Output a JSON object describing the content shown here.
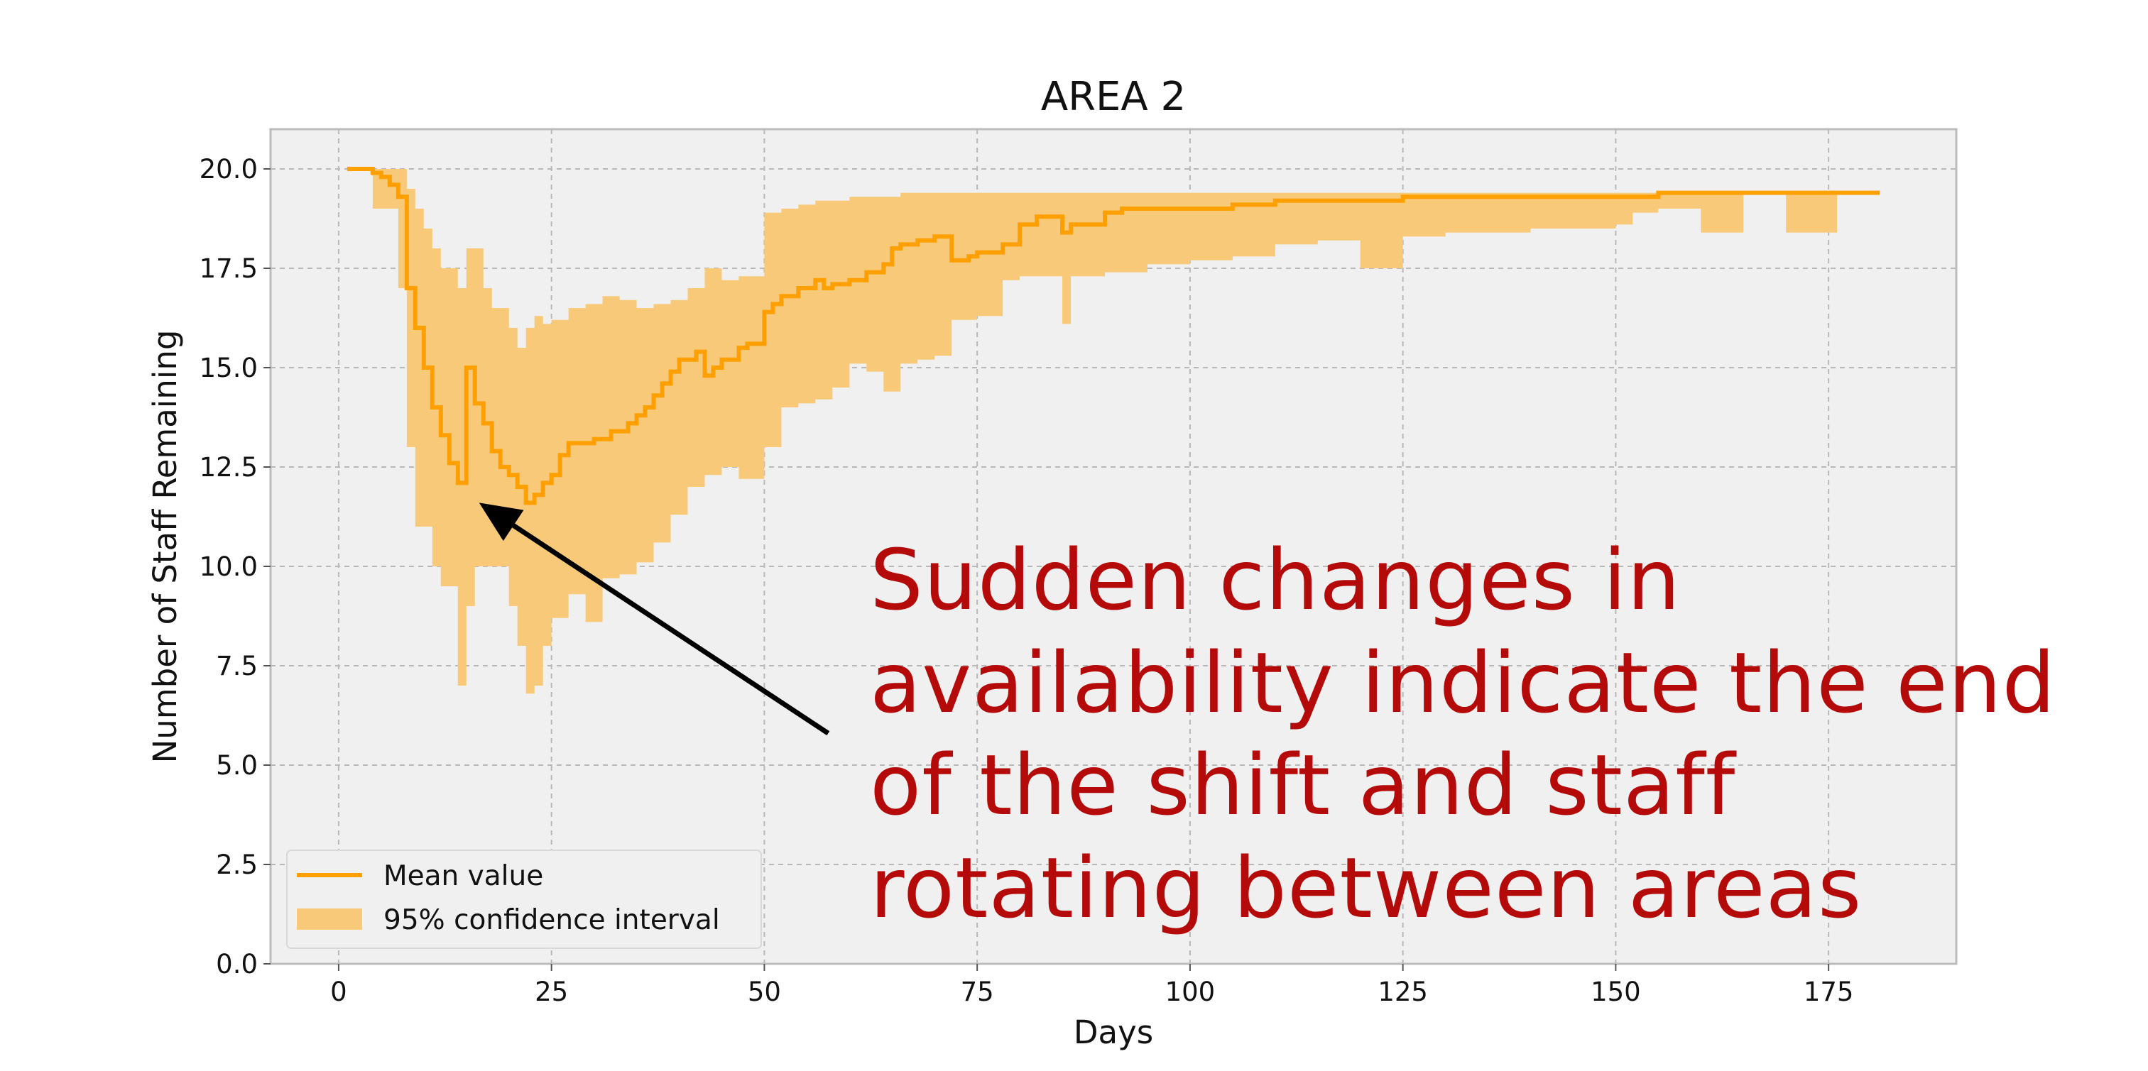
{
  "chart_data": {
    "type": "line",
    "title": "AREA 2",
    "xlabel": "Days",
    "ylabel": "Number of Staff Remaining",
    "xlim": [
      -8,
      190
    ],
    "ylim": [
      0,
      21
    ],
    "xticks": [
      0,
      25,
      50,
      75,
      100,
      125,
      150,
      175
    ],
    "yticks": [
      0.0,
      2.5,
      5.0,
      7.5,
      10.0,
      12.5,
      15.0,
      17.5,
      20.0
    ],
    "xtick_labels": [
      "0",
      "25",
      "50",
      "75",
      "100",
      "125",
      "150",
      "175"
    ],
    "ytick_labels": [
      "0.0",
      "2.5",
      "5.0",
      "7.5",
      "10.0",
      "12.5",
      "15.0",
      "17.5",
      "20.0"
    ],
    "grid": true,
    "legend_position": "lower-left",
    "colors": {
      "mean": "#ffa000",
      "ci": "#f7c978",
      "background": "#f0f0f0",
      "annotation": "#b50a0a",
      "arrow": "#000000"
    },
    "series": [
      {
        "name": "Mean value",
        "kind": "step-line",
        "x": [
          1,
          4,
          5,
          6,
          7,
          8,
          9,
          10,
          11,
          12,
          13,
          14,
          15,
          16,
          17,
          18,
          19,
          20,
          21,
          22,
          23,
          24,
          25,
          26,
          27,
          28,
          29,
          30,
          32,
          34,
          35,
          36,
          37,
          38,
          39,
          40,
          42,
          43,
          44,
          45,
          47,
          48,
          50,
          51,
          52,
          54,
          56,
          57,
          58,
          60,
          62,
          64,
          65,
          66,
          68,
          70,
          72,
          74,
          75,
          78,
          80,
          82,
          85,
          86,
          90,
          92,
          95,
          100,
          105,
          110,
          115,
          120,
          125,
          130,
          140,
          150,
          155,
          160,
          165,
          170,
          175,
          181
        ],
        "y": [
          20.0,
          19.9,
          19.8,
          19.6,
          19.3,
          17.0,
          16.0,
          15.0,
          14.0,
          13.3,
          12.6,
          12.1,
          15.0,
          14.1,
          13.6,
          12.9,
          12.5,
          12.3,
          12.0,
          11.6,
          11.8,
          12.1,
          12.3,
          12.8,
          13.1,
          13.1,
          13.1,
          13.2,
          13.4,
          13.6,
          13.8,
          14.0,
          14.3,
          14.6,
          14.9,
          15.2,
          15.4,
          14.8,
          15.0,
          15.2,
          15.5,
          15.6,
          16.4,
          16.6,
          16.8,
          17.0,
          17.2,
          17.0,
          17.1,
          17.2,
          17.4,
          17.6,
          18.0,
          18.1,
          18.2,
          18.3,
          17.7,
          17.8,
          17.9,
          18.1,
          18.6,
          18.8,
          18.4,
          18.6,
          18.9,
          19.0,
          19.0,
          19.0,
          19.1,
          19.2,
          19.2,
          19.2,
          19.3,
          19.3,
          19.3,
          19.3,
          19.4,
          19.4,
          19.4,
          19.4,
          19.4,
          19.4
        ]
      },
      {
        "name": "95% confidence interval",
        "kind": "step-band",
        "x": [
          1,
          4,
          7,
          8,
          9,
          10,
          11,
          12,
          14,
          15,
          16,
          17,
          18,
          20,
          21,
          22,
          23,
          24,
          25,
          27,
          29,
          31,
          33,
          35,
          37,
          39,
          41,
          43,
          45,
          47,
          50,
          52,
          54,
          56,
          58,
          60,
          62,
          64,
          66,
          68,
          70,
          72,
          75,
          78,
          80,
          85,
          86,
          90,
          95,
          100,
          105,
          110,
          115,
          120,
          125,
          130,
          140,
          150,
          152,
          155,
          160,
          165,
          170,
          176
        ],
        "lower": [
          20.0,
          19.0,
          17.0,
          13.0,
          11.0,
          11.0,
          10.0,
          9.5,
          7.0,
          9.0,
          10.0,
          10.0,
          10.0,
          9.0,
          8.0,
          6.8,
          7.0,
          8.0,
          8.7,
          9.3,
          8.6,
          9.7,
          9.8,
          10.1,
          10.6,
          11.3,
          12.0,
          12.3,
          12.5,
          12.2,
          13.0,
          14.0,
          14.1,
          14.2,
          14.5,
          15.1,
          14.9,
          14.4,
          15.1,
          15.2,
          15.3,
          16.2,
          16.3,
          17.2,
          17.3,
          16.1,
          17.3,
          17.4,
          17.6,
          17.7,
          17.8,
          18.1,
          18.2,
          17.5,
          18.3,
          18.4,
          18.5,
          18.6,
          18.9,
          19.0,
          18.4,
          19.4,
          18.4,
          19.4
        ],
        "upper": [
          20.0,
          20.0,
          20.0,
          19.5,
          19.0,
          18.5,
          18.0,
          17.5,
          17.0,
          18.0,
          18.0,
          17.0,
          16.5,
          16.0,
          15.5,
          16.0,
          16.3,
          16.1,
          16.2,
          16.5,
          16.6,
          16.8,
          16.7,
          16.5,
          16.6,
          16.7,
          17.0,
          17.5,
          17.2,
          17.3,
          18.9,
          19.0,
          19.1,
          19.2,
          19.2,
          19.3,
          19.3,
          19.3,
          19.4,
          19.4,
          19.4,
          19.4,
          19.4,
          19.4,
          19.4,
          19.4,
          19.4,
          19.4,
          19.4,
          19.4,
          19.4,
          19.4,
          19.4,
          19.4,
          19.4,
          19.4,
          19.4,
          19.4,
          19.4,
          19.4,
          19.4,
          19.4,
          19.4,
          19.4
        ]
      }
    ],
    "annotation": {
      "lines": [
        "Sudden changes in",
        "availability indicate the end",
        "of the shift and staff",
        "rotating between areas"
      ],
      "arrow_tail": [
        57.5,
        5.8
      ],
      "arrow_head": [
        16.5,
        11.6
      ]
    }
  }
}
